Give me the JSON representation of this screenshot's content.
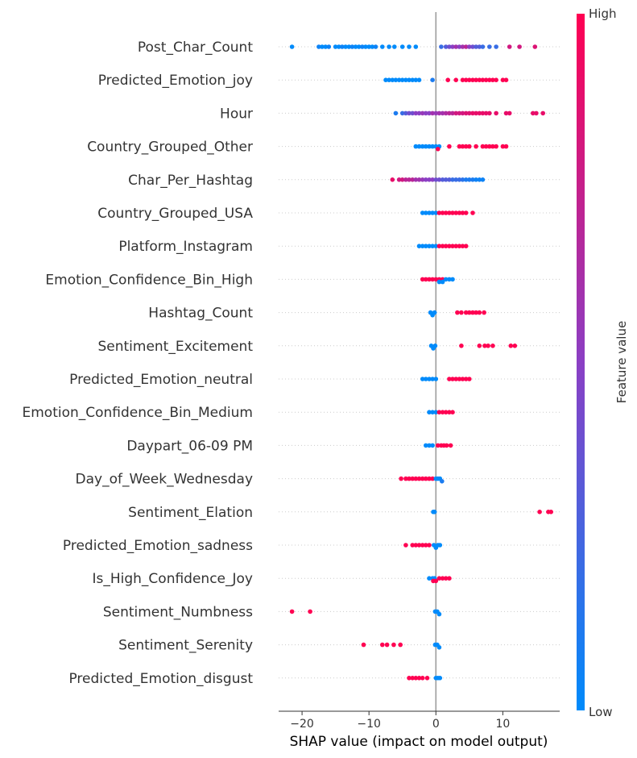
{
  "chart_data": {
    "type": "scatter",
    "subtype": "shap-beeswarm",
    "xlabel": "SHAP value (impact on model output)",
    "xlim": [
      -23.5,
      18.5
    ],
    "xticks": [
      -20,
      -10,
      0,
      10
    ],
    "xtick_labels": [
      "−20",
      "−10",
      "0",
      "10"
    ],
    "colorbar": {
      "label": "Feature value",
      "high_label": "High",
      "low_label": "Low",
      "low_color": "#008bfb",
      "high_color": "#ff0052"
    },
    "features": [
      {
        "name": "Post_Char_Count",
        "points": [
          [
            -21.5,
            0
          ],
          [
            -17.5,
            0.05
          ],
          [
            -17,
            0
          ],
          [
            -16.5,
            0
          ],
          [
            -16,
            0.05
          ],
          [
            -15,
            0
          ],
          [
            -14.5,
            0
          ],
          [
            -14,
            0.05
          ],
          [
            -13.5,
            0
          ],
          [
            -13,
            0
          ],
          [
            -12.5,
            0.05
          ],
          [
            -12,
            0
          ],
          [
            -11.5,
            0
          ],
          [
            -11,
            0.05
          ],
          [
            -10.5,
            0
          ],
          [
            -10,
            0
          ],
          [
            -9.5,
            0
          ],
          [
            -9,
            0.05
          ],
          [
            -8,
            0
          ],
          [
            -7,
            0
          ],
          [
            -6.2,
            0
          ],
          [
            -5,
            0
          ],
          [
            -4,
            0
          ],
          [
            -3,
            0
          ],
          [
            0.8,
            0.2
          ],
          [
            1.5,
            0.3
          ],
          [
            2,
            0.4
          ],
          [
            2.5,
            0.5
          ],
          [
            3,
            0.6
          ],
          [
            3.5,
            0.5
          ],
          [
            4,
            0.6
          ],
          [
            4.5,
            0.7
          ],
          [
            5,
            0.5
          ],
          [
            5.5,
            0.4
          ],
          [
            6,
            0.3
          ],
          [
            6.5,
            0.3
          ],
          [
            7,
            0.2
          ],
          [
            8,
            0.2
          ],
          [
            9,
            0.2
          ],
          [
            11,
            0.8
          ],
          [
            12.5,
            0.8
          ],
          [
            14.8,
            0.85
          ]
        ]
      },
      {
        "name": "Predicted_Emotion_joy",
        "points": [
          [
            -7.5,
            0
          ],
          [
            -7,
            0
          ],
          [
            -6.5,
            0
          ],
          [
            -6,
            0
          ],
          [
            -5.5,
            0
          ],
          [
            -5,
            0
          ],
          [
            -4.5,
            0
          ],
          [
            -4,
            0
          ],
          [
            -3.5,
            0
          ],
          [
            -3,
            0
          ],
          [
            -2.5,
            0
          ],
          [
            -0.5,
            0.1
          ],
          [
            1.8,
            1
          ],
          [
            3,
            1
          ],
          [
            4,
            1
          ],
          [
            4.5,
            1
          ],
          [
            5,
            1
          ],
          [
            5.5,
            1
          ],
          [
            6,
            1
          ],
          [
            6.5,
            1
          ],
          [
            7,
            1
          ],
          [
            7.5,
            1
          ],
          [
            8,
            1
          ],
          [
            8.5,
            1
          ],
          [
            9,
            1
          ],
          [
            10,
            1
          ],
          [
            10.5,
            1
          ]
        ]
      },
      {
        "name": "Hour",
        "points": [
          [
            -6,
            0.1
          ],
          [
            -5,
            0.2
          ],
          [
            -4.5,
            0.3
          ],
          [
            -4,
            0.4
          ],
          [
            -3.5,
            0.4
          ],
          [
            -3,
            0.5
          ],
          [
            -2.5,
            0.5
          ],
          [
            -2,
            0.55
          ],
          [
            -1.5,
            0.5
          ],
          [
            -1,
            0.5
          ],
          [
            -0.5,
            0.6
          ],
          [
            0,
            0.55
          ],
          [
            0.5,
            0.6
          ],
          [
            1,
            0.6
          ],
          [
            1.5,
            0.65
          ],
          [
            2,
            0.7
          ],
          [
            2.5,
            0.7
          ],
          [
            3,
            0.8
          ],
          [
            3.5,
            0.8
          ],
          [
            4,
            0.8
          ],
          [
            4.5,
            0.85
          ],
          [
            5,
            0.85
          ],
          [
            5.5,
            0.9
          ],
          [
            6,
            0.9
          ],
          [
            6.5,
            0.9
          ],
          [
            7,
            0.9
          ],
          [
            7.5,
            0.9
          ],
          [
            8,
            0.9
          ],
          [
            9,
            0.9
          ],
          [
            10.5,
            0.9
          ],
          [
            11,
            0.9
          ],
          [
            14.5,
            0.9
          ],
          [
            15,
            0.9
          ],
          [
            16,
            0.9
          ]
        ]
      },
      {
        "name": "Country_Grouped_Other",
        "points": [
          [
            -3,
            0
          ],
          [
            -2.5,
            0
          ],
          [
            -2,
            0
          ],
          [
            -1.5,
            0
          ],
          [
            -1,
            0
          ],
          [
            -0.5,
            0
          ],
          [
            0,
            0
          ],
          [
            0.5,
            0
          ],
          [
            0.3,
            1
          ],
          [
            2,
            1
          ],
          [
            3.5,
            1
          ],
          [
            4,
            1
          ],
          [
            4.5,
            1
          ],
          [
            5,
            1
          ],
          [
            6,
            1
          ],
          [
            7,
            1
          ],
          [
            7.5,
            1
          ],
          [
            8,
            1
          ],
          [
            8.5,
            1
          ],
          [
            9,
            1
          ],
          [
            10,
            1
          ],
          [
            10.5,
            1
          ]
        ]
      },
      {
        "name": "Char_Per_Hashtag",
        "points": [
          [
            -6.5,
            0.9
          ],
          [
            -5.5,
            0.8
          ],
          [
            -5,
            0.8
          ],
          [
            -4.5,
            0.7
          ],
          [
            -4,
            0.7
          ],
          [
            -3.5,
            0.7
          ],
          [
            -3,
            0.6
          ],
          [
            -2.5,
            0.6
          ],
          [
            -2,
            0.55
          ],
          [
            -1.5,
            0.5
          ],
          [
            -1,
            0.5
          ],
          [
            -0.5,
            0.5
          ],
          [
            0,
            0.4
          ],
          [
            0.5,
            0.4
          ],
          [
            1,
            0.3
          ],
          [
            1.5,
            0.3
          ],
          [
            2,
            0.3
          ],
          [
            2.5,
            0.2
          ],
          [
            3,
            0.2
          ],
          [
            3.5,
            0.2
          ],
          [
            4,
            0.15
          ],
          [
            4.5,
            0.1
          ],
          [
            5,
            0.1
          ],
          [
            5.5,
            0.1
          ],
          [
            6,
            0.05
          ],
          [
            6.5,
            0.05
          ],
          [
            7,
            0.05
          ]
        ]
      },
      {
        "name": "Country_Grouped_USA",
        "points": [
          [
            -2,
            0
          ],
          [
            -1.5,
            0
          ],
          [
            -1,
            0
          ],
          [
            -0.5,
            0
          ],
          [
            0,
            0
          ],
          [
            0.5,
            1
          ],
          [
            1,
            1
          ],
          [
            1.5,
            1
          ],
          [
            2,
            1
          ],
          [
            2.5,
            1
          ],
          [
            3,
            1
          ],
          [
            3.5,
            1
          ],
          [
            4,
            1
          ],
          [
            4.5,
            1
          ],
          [
            5.5,
            1
          ]
        ]
      },
      {
        "name": "Platform_Instagram",
        "points": [
          [
            -2.5,
            0
          ],
          [
            -2,
            0
          ],
          [
            -1.5,
            0
          ],
          [
            -1,
            0
          ],
          [
            -0.5,
            0
          ],
          [
            0,
            0
          ],
          [
            0.5,
            1
          ],
          [
            1,
            1
          ],
          [
            1.5,
            1
          ],
          [
            2,
            1
          ],
          [
            2.5,
            1
          ],
          [
            3,
            1
          ],
          [
            3.5,
            1
          ],
          [
            4,
            1
          ],
          [
            4.5,
            1
          ]
        ]
      },
      {
        "name": "Emotion_Confidence_Bin_High",
        "points": [
          [
            -2,
            1
          ],
          [
            -1.5,
            1
          ],
          [
            -1,
            1
          ],
          [
            -0.5,
            1
          ],
          [
            0,
            1
          ],
          [
            0.5,
            1
          ],
          [
            1,
            1
          ],
          [
            0.5,
            0
          ],
          [
            1,
            0
          ],
          [
            1.5,
            0
          ],
          [
            2,
            0
          ],
          [
            2.5,
            0
          ]
        ]
      },
      {
        "name": "Hashtag_Count",
        "points": [
          [
            -0.8,
            0
          ],
          [
            -0.5,
            0
          ],
          [
            -0.2,
            0
          ],
          [
            3.2,
            1
          ],
          [
            3.8,
            1
          ],
          [
            4.5,
            1
          ],
          [
            5,
            1
          ],
          [
            5.5,
            1
          ],
          [
            6,
            1
          ],
          [
            6.5,
            1
          ],
          [
            7.2,
            1
          ]
        ]
      },
      {
        "name": "Sentiment_Excitement",
        "points": [
          [
            -0.7,
            0
          ],
          [
            -0.4,
            0
          ],
          [
            -0.1,
            0
          ],
          [
            3.8,
            1
          ],
          [
            6.5,
            1
          ],
          [
            7.3,
            1
          ],
          [
            7.8,
            1
          ],
          [
            8.5,
            1
          ],
          [
            11.2,
            1
          ],
          [
            11.8,
            1
          ]
        ]
      },
      {
        "name": "Predicted_Emotion_neutral",
        "points": [
          [
            -2,
            0
          ],
          [
            -1.5,
            0
          ],
          [
            -1,
            0
          ],
          [
            -0.5,
            0
          ],
          [
            0,
            0
          ],
          [
            2,
            1
          ],
          [
            2.5,
            1
          ],
          [
            3,
            1
          ],
          [
            3.5,
            1
          ],
          [
            4,
            1
          ],
          [
            4.5,
            1
          ],
          [
            5,
            1
          ]
        ]
      },
      {
        "name": "Emotion_Confidence_Bin_Medium",
        "points": [
          [
            -1,
            0
          ],
          [
            -0.5,
            0
          ],
          [
            0,
            0
          ],
          [
            0.5,
            1
          ],
          [
            1,
            1
          ],
          [
            1.5,
            1
          ],
          [
            2,
            1
          ],
          [
            2.5,
            1
          ]
        ]
      },
      {
        "name": "Daypart_06-09 PM",
        "points": [
          [
            -1.5,
            0
          ],
          [
            -1,
            0
          ],
          [
            -0.5,
            0
          ],
          [
            0.3,
            1
          ],
          [
            0.8,
            1
          ],
          [
            1.2,
            1
          ],
          [
            1.6,
            1
          ],
          [
            2.2,
            1
          ]
        ]
      },
      {
        "name": "Day_of_Week_Wednesday",
        "points": [
          [
            -5.2,
            1
          ],
          [
            -4.5,
            1
          ],
          [
            -4,
            1
          ],
          [
            -3.5,
            1
          ],
          [
            -3,
            1
          ],
          [
            -2.5,
            1
          ],
          [
            -2,
            1
          ],
          [
            -1.5,
            1
          ],
          [
            -1,
            1
          ],
          [
            -0.5,
            1
          ],
          [
            0,
            0
          ],
          [
            0.3,
            0
          ],
          [
            0.6,
            0
          ],
          [
            0.9,
            0.1
          ]
        ]
      },
      {
        "name": "Sentiment_Elation",
        "points": [
          [
            -0.4,
            0
          ],
          [
            -0.2,
            0
          ],
          [
            15.5,
            1
          ],
          [
            16.8,
            1
          ],
          [
            17.2,
            1
          ]
        ]
      },
      {
        "name": "Predicted_Emotion_sadness",
        "points": [
          [
            -4.5,
            1
          ],
          [
            -3.5,
            1
          ],
          [
            -3,
            1
          ],
          [
            -2.5,
            1
          ],
          [
            -2,
            1
          ],
          [
            -1.5,
            1
          ],
          [
            -1,
            1
          ],
          [
            -0.3,
            0
          ],
          [
            0,
            0
          ],
          [
            0.3,
            0
          ],
          [
            0.6,
            0
          ]
        ]
      },
      {
        "name": "Is_High_Confidence_Joy",
        "points": [
          [
            -1,
            0
          ],
          [
            -0.5,
            0
          ],
          [
            -0.2,
            0
          ],
          [
            -0.4,
            1
          ],
          [
            0,
            1
          ],
          [
            0.5,
            1
          ],
          [
            1,
            1
          ],
          [
            1.5,
            1
          ],
          [
            2,
            1
          ]
        ]
      },
      {
        "name": "Sentiment_Numbness",
        "points": [
          [
            -21.5,
            1
          ],
          [
            -18.8,
            1
          ],
          [
            -0.1,
            0
          ],
          [
            0.2,
            0
          ],
          [
            0.5,
            0
          ]
        ]
      },
      {
        "name": "Sentiment_Serenity",
        "points": [
          [
            -10.8,
            1
          ],
          [
            -8,
            1
          ],
          [
            -7.3,
            1
          ],
          [
            -6.3,
            1
          ],
          [
            -5.3,
            1
          ],
          [
            -0.1,
            0
          ],
          [
            0.2,
            0
          ],
          [
            0.5,
            0
          ]
        ]
      },
      {
        "name": "Predicted_Emotion_disgust",
        "points": [
          [
            -4,
            1
          ],
          [
            -3.5,
            1
          ],
          [
            -3,
            1
          ],
          [
            -2.5,
            1
          ],
          [
            -2,
            1
          ],
          [
            -1.3,
            1
          ],
          [
            0,
            0
          ],
          [
            0.3,
            0
          ],
          [
            0.6,
            0
          ]
        ]
      }
    ]
  }
}
